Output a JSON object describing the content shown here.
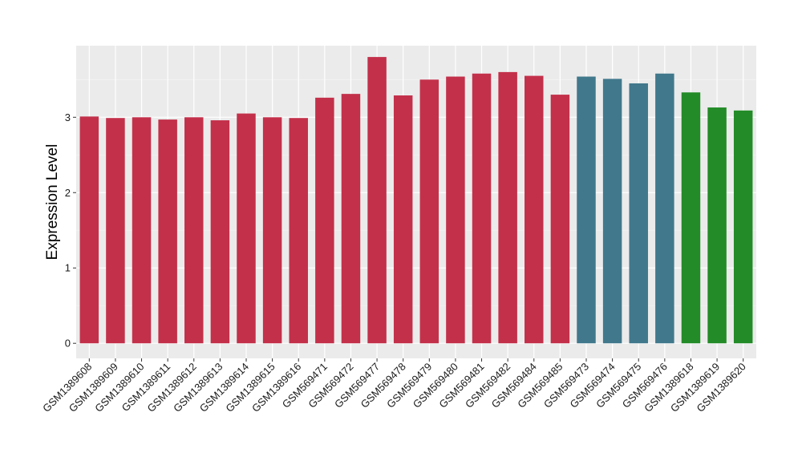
{
  "chart_data": {
    "type": "bar",
    "ylabel": "Expression Level",
    "xlabel": "",
    "ylim": [
      -0.2,
      3.95
    ],
    "yticks": [
      0,
      1,
      2,
      3
    ],
    "grid": true,
    "colors": {
      "panel": "#ebebeb",
      "grid_major": "#ffffff",
      "grid_minor": "#f4f4f4",
      "group_red": "#c3304a",
      "group_blue": "#41788c",
      "group_green": "#238b27"
    },
    "categories": [
      "GSM1389608",
      "GSM1389609",
      "GSM1389610",
      "GSM1389611",
      "GSM1389612",
      "GSM1389613",
      "GSM1389614",
      "GSM1389615",
      "GSM1389616",
      "GSM569471",
      "GSM569472",
      "GSM569477",
      "GSM569478",
      "GSM569479",
      "GSM569480",
      "GSM569481",
      "GSM569482",
      "GSM569484",
      "GSM569485",
      "GSM569473",
      "GSM569474",
      "GSM569475",
      "GSM569476",
      "GSM1389618",
      "GSM1389619",
      "GSM1389620"
    ],
    "values": [
      3.01,
      2.99,
      3.0,
      2.97,
      3.0,
      2.96,
      3.05,
      3.0,
      2.99,
      3.26,
      3.31,
      3.8,
      3.29,
      3.5,
      3.54,
      3.58,
      3.6,
      3.55,
      3.3,
      3.54,
      3.51,
      3.45,
      3.58,
      3.33,
      3.13,
      3.09
    ],
    "groups": [
      "group_red",
      "group_red",
      "group_red",
      "group_red",
      "group_red",
      "group_red",
      "group_red",
      "group_red",
      "group_red",
      "group_red",
      "group_red",
      "group_red",
      "group_red",
      "group_red",
      "group_red",
      "group_red",
      "group_red",
      "group_red",
      "group_red",
      "group_blue",
      "group_blue",
      "group_blue",
      "group_blue",
      "group_green",
      "group_green",
      "group_green"
    ]
  }
}
